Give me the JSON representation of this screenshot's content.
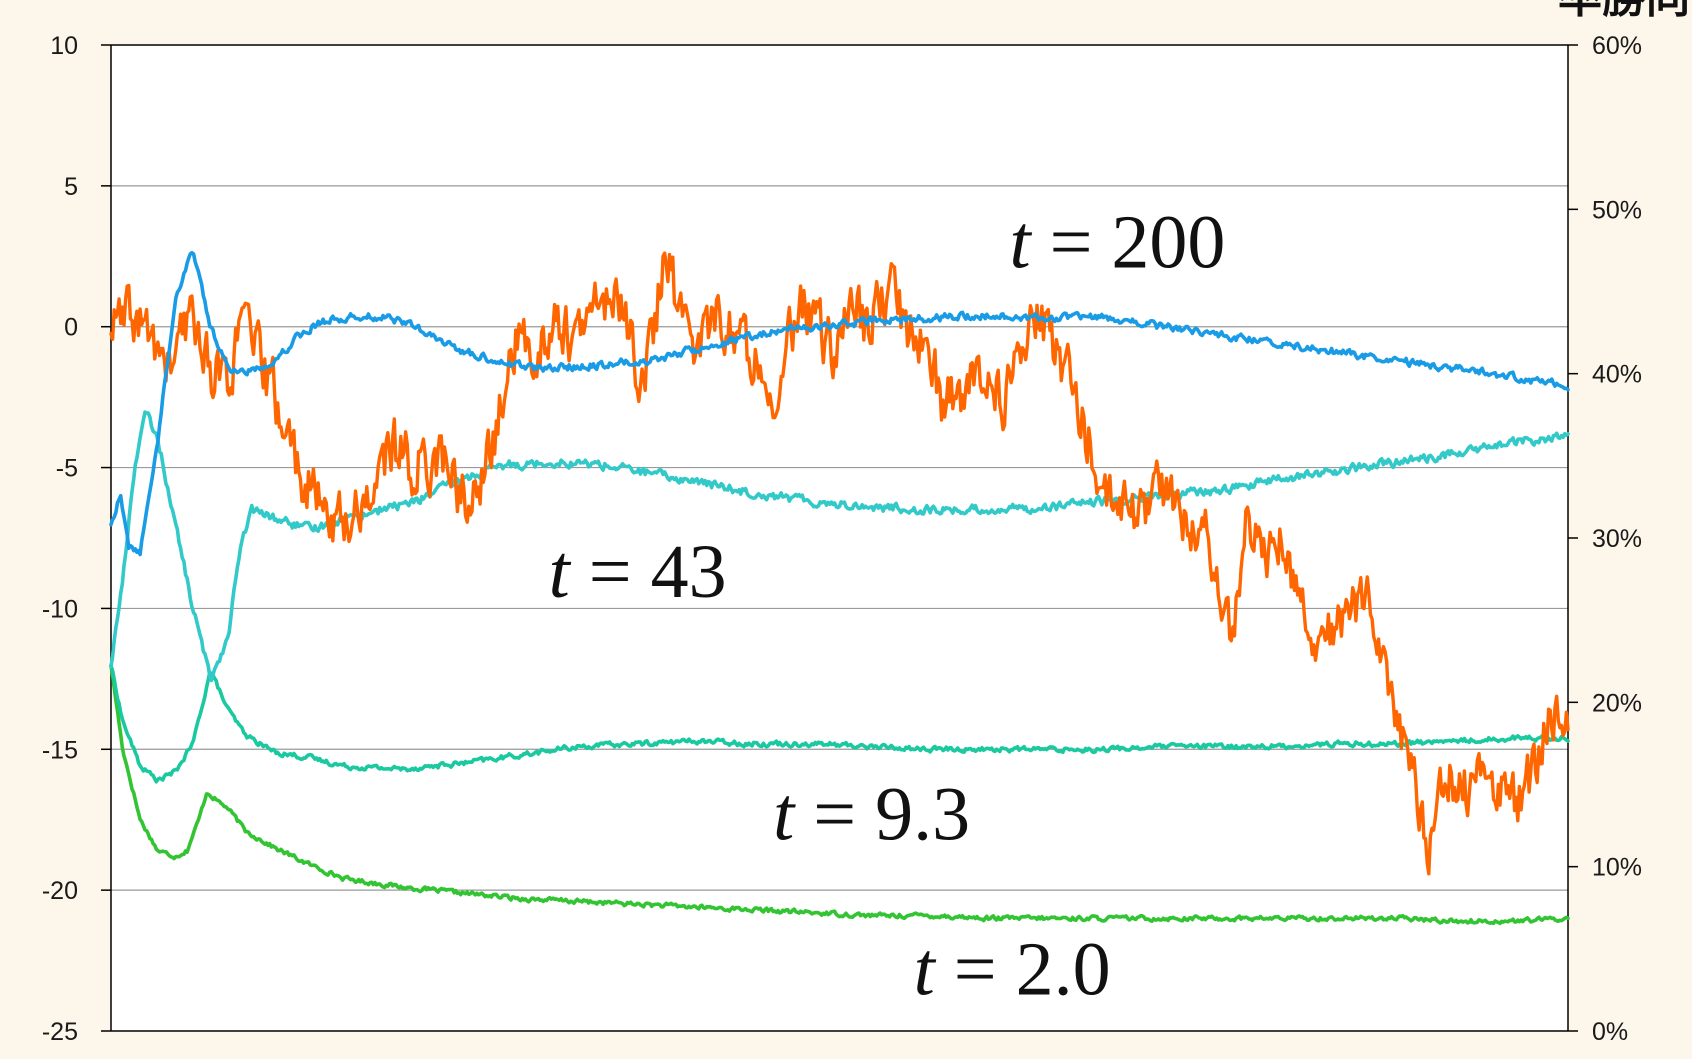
{
  "chart_data": {
    "type": "line",
    "title": "",
    "xlabel": "",
    "ylabel": "",
    "ylim": [
      -25,
      10
    ],
    "y_ticks": [
      "10",
      "5",
      "0",
      "-5",
      "-10",
      "-15",
      "-20",
      "-25"
    ],
    "y2lim": [
      0,
      60
    ],
    "y2_ticks": [
      "60%",
      "50%",
      "40%",
      "30%",
      "20%",
      "10%",
      "0%"
    ],
    "grid": true,
    "x_ticks_shown": false,
    "corner_text": "率勝同",
    "colors": {
      "orange": "#ff6600",
      "blue": "#1a9be6",
      "cyan": "#33c9c9",
      "teal": "#1ac9a0",
      "green": "#33c433",
      "grid": "#9a9a9a",
      "axis": "#000000"
    },
    "annotations": [
      {
        "italic": "t",
        "rest": " = 200",
        "x": 0.86,
        "y": 2.1
      },
      {
        "italic": "t",
        "rest": " = 43",
        "x": 0.45,
        "y": -9.6
      },
      {
        "italic": "t",
        "rest": " = 9.3",
        "x": 0.65,
        "y": -18.2
      },
      {
        "italic": "t",
        "rest": " = 2.0",
        "x": 0.77,
        "y": -23.7
      }
    ],
    "series": [
      {
        "key": "orange",
        "color": "#ff6600",
        "axis": "left",
        "noise": 0.9,
        "points": [
          [
            0,
            0
          ],
          [
            0.02,
            0.3
          ],
          [
            0.035,
            -0.5
          ],
          [
            0.05,
            -1.5
          ],
          [
            0.07,
            0.5
          ],
          [
            0.085,
            -1.5
          ],
          [
            0.1,
            -1.8
          ],
          [
            0.115,
            0.2
          ],
          [
            0.125,
            -1
          ],
          [
            0.14,
            -2.5
          ],
          [
            0.16,
            -5
          ],
          [
            0.18,
            -6.5
          ],
          [
            0.2,
            -7
          ],
          [
            0.22,
            -6
          ],
          [
            0.24,
            -4.2
          ],
          [
            0.26,
            -5
          ],
          [
            0.28,
            -4.5
          ],
          [
            0.3,
            -6
          ],
          [
            0.315,
            -6
          ],
          [
            0.33,
            -3.5
          ],
          [
            0.345,
            -0.5
          ],
          [
            0.36,
            -1
          ],
          [
            0.38,
            0.2
          ],
          [
            0.4,
            -0.5
          ],
          [
            0.42,
            1.2
          ],
          [
            0.44,
            0.5
          ],
          [
            0.45,
            -1.5
          ],
          [
            0.46,
            -1.2
          ],
          [
            0.475,
            3
          ],
          [
            0.485,
            0.2
          ],
          [
            0.5,
            -0.5
          ],
          [
            0.52,
            0.5
          ],
          [
            0.54,
            -0.7
          ],
          [
            0.56,
            -1.2
          ],
          [
            0.57,
            -2.8
          ],
          [
            0.585,
            0.5
          ],
          [
            0.6,
            0.4
          ],
          [
            0.615,
            -1
          ],
          [
            0.63,
            0.8
          ],
          [
            0.65,
            -0.1
          ],
          [
            0.665,
            1.5
          ],
          [
            0.68,
            0
          ],
          [
            0.7,
            -0.8
          ],
          [
            0.71,
            -2.8
          ],
          [
            0.73,
            -2.3
          ],
          [
            0.75,
            -1.5
          ],
          [
            0.76,
            -2.8
          ],
          [
            0.775,
            -1.5
          ],
          [
            0.79,
            0.3
          ],
          [
            0.805,
            -0.5
          ],
          [
            0.82,
            -2
          ],
          [
            0.835,
            -4
          ],
          [
            0.85,
            -6
          ],
          [
            0.865,
            -6.5
          ],
          [
            0.88,
            -6.8
          ],
          [
            0.895,
            -5.5
          ],
          [
            0.91,
            -6
          ],
          [
            0.92,
            -7.5
          ],
          [
            0.935,
            -7
          ],
          [
            0.945,
            -9.5
          ],
          [
            0.96,
            -11
          ],
          [
            0.97,
            -7.2
          ],
          [
            0.98,
            -6.5
          ],
          [
            0.99,
            -8
          ],
          [
            1.0,
            -7.2
          ],
          [
            1.015,
            -9.5
          ],
          [
            1.03,
            -11
          ],
          [
            1.045,
            -10.5
          ],
          [
            1.06,
            -10
          ],
          [
            1.075,
            -9.6
          ],
          [
            1.09,
            -12
          ],
          [
            1.1,
            -14.2
          ],
          [
            1.115,
            -16.5
          ],
          [
            1.125,
            -19
          ],
          [
            1.14,
            -15.8
          ],
          [
            1.16,
            -16.5
          ],
          [
            1.18,
            -15.8
          ],
          [
            1.2,
            -17
          ],
          [
            1.215,
            -16
          ],
          [
            1.23,
            -13.5
          ],
          [
            1.245,
            -14.5
          ]
        ]
      },
      {
        "key": "blue",
        "color": "#1a9be6",
        "axis": "left",
        "noise": 0.12,
        "points": [
          [
            0,
            -7
          ],
          [
            0.008,
            -6
          ],
          [
            0.015,
            -7.8
          ],
          [
            0.025,
            -8
          ],
          [
            0.04,
            -4
          ],
          [
            0.055,
            1
          ],
          [
            0.07,
            2.8
          ],
          [
            0.085,
            0
          ],
          [
            0.1,
            -1.5
          ],
          [
            0.115,
            -1.6
          ],
          [
            0.13,
            -1.4
          ],
          [
            0.145,
            -1
          ],
          [
            0.16,
            -0.3
          ],
          [
            0.18,
            0.2
          ],
          [
            0.2,
            0.3
          ],
          [
            0.22,
            0.4
          ],
          [
            0.25,
            0.2
          ],
          [
            0.28,
            -0.5
          ],
          [
            0.31,
            -1
          ],
          [
            0.34,
            -1.3
          ],
          [
            0.37,
            -1.5
          ],
          [
            0.4,
            -1.4
          ],
          [
            0.43,
            -1.3
          ],
          [
            0.46,
            -1.2
          ],
          [
            0.5,
            -0.8
          ],
          [
            0.55,
            -0.3
          ],
          [
            0.6,
            0
          ],
          [
            0.65,
            0.2
          ],
          [
            0.7,
            0.3
          ],
          [
            0.75,
            0.4
          ],
          [
            0.8,
            0.3
          ],
          [
            0.85,
            0.3
          ],
          [
            0.9,
            0
          ],
          [
            0.95,
            -0.3
          ],
          [
            1.0,
            -0.6
          ],
          [
            1.05,
            -0.9
          ],
          [
            1.1,
            -1.2
          ],
          [
            1.15,
            -1.5
          ],
          [
            1.2,
            -1.8
          ],
          [
            1.245,
            -2.1
          ]
        ]
      },
      {
        "key": "cyan",
        "color": "#33c9c9",
        "axis": "left",
        "noise": 0.14,
        "points": [
          [
            0,
            -12
          ],
          [
            0.01,
            -9
          ],
          [
            0.02,
            -5
          ],
          [
            0.03,
            -3
          ],
          [
            0.04,
            -4
          ],
          [
            0.055,
            -7
          ],
          [
            0.07,
            -10
          ],
          [
            0.085,
            -12.5
          ],
          [
            0.1,
            -11
          ],
          [
            0.11,
            -8
          ],
          [
            0.12,
            -6.5
          ],
          [
            0.14,
            -6.8
          ],
          [
            0.17,
            -7.2
          ],
          [
            0.2,
            -6.8
          ],
          [
            0.23,
            -6.5
          ],
          [
            0.26,
            -6.2
          ],
          [
            0.3,
            -5.4
          ],
          [
            0.34,
            -4.9
          ],
          [
            0.38,
            -4.8
          ],
          [
            0.42,
            -4.9
          ],
          [
            0.46,
            -5.2
          ],
          [
            0.5,
            -5.5
          ],
          [
            0.55,
            -5.9
          ],
          [
            0.6,
            -6.2
          ],
          [
            0.65,
            -6.4
          ],
          [
            0.7,
            -6.5
          ],
          [
            0.75,
            -6.5
          ],
          [
            0.8,
            -6.4
          ],
          [
            0.85,
            -6.2
          ],
          [
            0.9,
            -6
          ],
          [
            0.95,
            -5.8
          ],
          [
            1.0,
            -5.4
          ],
          [
            1.05,
            -5.1
          ],
          [
            1.1,
            -4.8
          ],
          [
            1.15,
            -4.5
          ],
          [
            1.2,
            -4.1
          ],
          [
            1.245,
            -3.9
          ]
        ]
      },
      {
        "key": "teal",
        "color": "#1ac9a0",
        "axis": "left",
        "noise": 0.08,
        "points": [
          [
            0,
            -12
          ],
          [
            0.01,
            -14
          ],
          [
            0.025,
            -15.6
          ],
          [
            0.04,
            -16.1
          ],
          [
            0.055,
            -15.8
          ],
          [
            0.07,
            -14.8
          ],
          [
            0.085,
            -12.2
          ],
          [
            0.1,
            -13.6
          ],
          [
            0.115,
            -14.5
          ],
          [
            0.14,
            -15.1
          ],
          [
            0.17,
            -15.3
          ],
          [
            0.2,
            -15.6
          ],
          [
            0.25,
            -15.7
          ],
          [
            0.3,
            -15.5
          ],
          [
            0.35,
            -15.2
          ],
          [
            0.4,
            -14.9
          ],
          [
            0.45,
            -14.8
          ],
          [
            0.5,
            -14.7
          ],
          [
            0.55,
            -14.8
          ],
          [
            0.6,
            -14.8
          ],
          [
            0.65,
            -14.9
          ],
          [
            0.7,
            -15
          ],
          [
            0.75,
            -15
          ],
          [
            0.8,
            -15
          ],
          [
            0.85,
            -15
          ],
          [
            0.9,
            -14.9
          ],
          [
            0.95,
            -14.9
          ],
          [
            1.0,
            -14.9
          ],
          [
            1.05,
            -14.8
          ],
          [
            1.1,
            -14.8
          ],
          [
            1.15,
            -14.7
          ],
          [
            1.2,
            -14.6
          ],
          [
            1.245,
            -14.6
          ]
        ]
      },
      {
        "key": "green",
        "color": "#33c433",
        "axis": "left",
        "noise": 0.07,
        "points": [
          [
            0,
            -12
          ],
          [
            0.01,
            -15
          ],
          [
            0.025,
            -17.5
          ],
          [
            0.04,
            -18.6
          ],
          [
            0.055,
            -18.8
          ],
          [
            0.065,
            -18.6
          ],
          [
            0.075,
            -17.5
          ],
          [
            0.082,
            -16.5
          ],
          [
            0.09,
            -16.8
          ],
          [
            0.1,
            -17.1
          ],
          [
            0.115,
            -17.9
          ],
          [
            0.14,
            -18.5
          ],
          [
            0.17,
            -19.1
          ],
          [
            0.2,
            -19.6
          ],
          [
            0.25,
            -19.9
          ],
          [
            0.3,
            -20.1
          ],
          [
            0.35,
            -20.3
          ],
          [
            0.4,
            -20.4
          ],
          [
            0.45,
            -20.5
          ],
          [
            0.5,
            -20.6
          ],
          [
            0.55,
            -20.7
          ],
          [
            0.6,
            -20.8
          ],
          [
            0.65,
            -20.9
          ],
          [
            0.7,
            -20.9
          ],
          [
            0.75,
            -21
          ],
          [
            0.8,
            -21
          ],
          [
            0.85,
            -21
          ],
          [
            0.9,
            -21
          ],
          [
            0.95,
            -21
          ],
          [
            1.0,
            -21
          ],
          [
            1.05,
            -21
          ],
          [
            1.1,
            -21
          ],
          [
            1.15,
            -21.1
          ],
          [
            1.2,
            -21.1
          ],
          [
            1.245,
            -21
          ]
        ]
      }
    ]
  }
}
